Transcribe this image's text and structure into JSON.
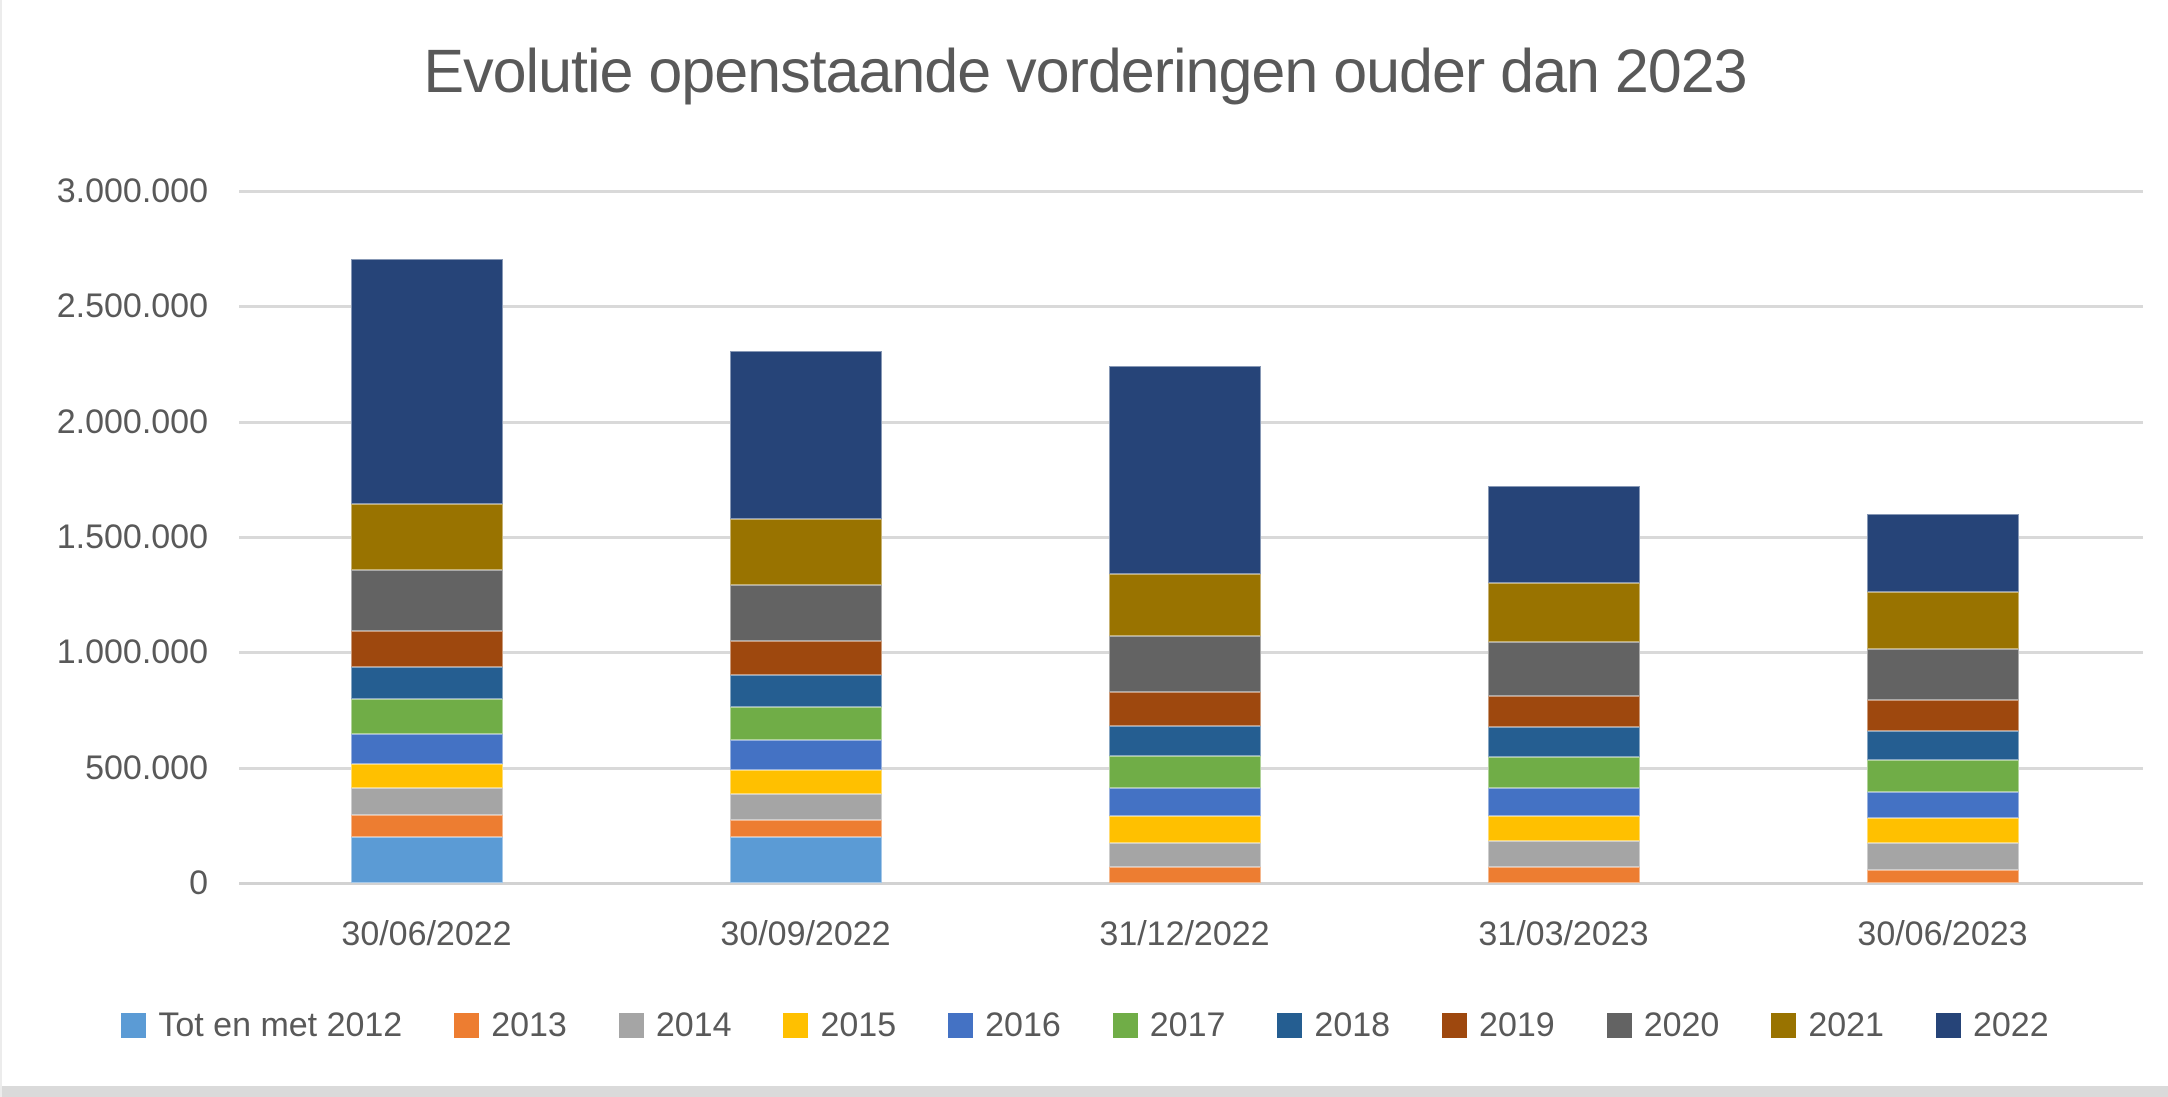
{
  "title": "Evolutie openstaande vorderingen ouder dan 2023",
  "colors": {
    "text": "#595959",
    "gridline": "#D9D9D9",
    "axis_line": "#D2D2D2",
    "bottom_strip": "#DADADA"
  },
  "chart_data": {
    "type": "bar",
    "stacked": true,
    "title": "Evolutie openstaande vorderingen ouder dan 2023",
    "grid": true,
    "legend_position": "bottom",
    "xlabel": "",
    "ylabel": "",
    "ylim": [
      0,
      3000000
    ],
    "ytick_step": 500000,
    "ytick_labels": [
      "0",
      "500.000",
      "1.000.000",
      "1.500.000",
      "2.000.000",
      "2.500.000",
      "3.000.000"
    ],
    "categories": [
      "30/06/2022",
      "30/09/2022",
      "31/12/2022",
      "31/03/2023",
      "30/06/2023"
    ],
    "series": [
      {
        "name": "Tot en met 2012",
        "color": "#5B9BD5",
        "values": [
          200000,
          200000,
          0,
          0,
          0
        ]
      },
      {
        "name": "2013",
        "color": "#ED7D31",
        "values": [
          95000,
          75000,
          68000,
          70000,
          56000
        ]
      },
      {
        "name": "2014",
        "color": "#A5A5A5",
        "values": [
          115000,
          110000,
          107000,
          110000,
          116000
        ]
      },
      {
        "name": "2015",
        "color": "#FFC000",
        "values": [
          108000,
          105000,
          115000,
          110000,
          108000
        ]
      },
      {
        "name": "2016",
        "color": "#4472C4",
        "values": [
          130000,
          130000,
          120000,
          120000,
          115000
        ]
      },
      {
        "name": "2017",
        "color": "#70AD47",
        "values": [
          150000,
          145000,
          140000,
          135000,
          140000
        ]
      },
      {
        "name": "2018",
        "color": "#255E91",
        "values": [
          137000,
          135000,
          130000,
          130000,
          125000
        ]
      },
      {
        "name": "2019",
        "color": "#9E480E",
        "values": [
          158000,
          150000,
          150000,
          135000,
          135000
        ]
      },
      {
        "name": "2020",
        "color": "#636363",
        "values": [
          262000,
          240000,
          240000,
          235000,
          220000
        ]
      },
      {
        "name": "2021",
        "color": "#997300",
        "values": [
          290000,
          290000,
          270000,
          255000,
          245000
        ]
      },
      {
        "name": "2022",
        "color": "#264478",
        "values": [
          1060000,
          728000,
          900000,
          420000,
          340000
        ]
      }
    ],
    "totals": [
      2705000,
      2308000,
      2240000,
      1720000,
      1600000
    ]
  }
}
